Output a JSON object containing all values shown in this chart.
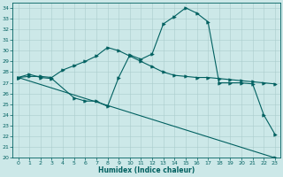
{
  "line1_x": [
    0,
    1,
    2,
    3,
    5,
    6,
    7,
    8,
    9,
    10,
    11,
    12,
    13,
    14,
    15,
    16,
    17,
    18,
    19,
    20,
    21,
    22,
    23
  ],
  "line1_y": [
    27.5,
    27.8,
    27.5,
    27.4,
    25.6,
    25.3,
    25.3,
    24.8,
    27.5,
    29.6,
    29.2,
    29.7,
    32.5,
    33.2,
    34.0,
    33.5,
    32.7,
    27.0,
    27.0,
    27.0,
    26.9,
    24.0,
    22.2
  ],
  "line2_x": [
    0,
    1,
    2,
    3,
    4,
    5,
    6,
    7,
    8,
    9,
    10,
    11,
    12,
    13,
    14,
    15,
    16,
    17,
    18,
    19,
    20,
    21,
    22,
    23
  ],
  "line2_y": [
    27.5,
    27.6,
    27.6,
    27.5,
    28.2,
    28.6,
    29.0,
    29.5,
    30.3,
    30.0,
    29.5,
    29.0,
    28.5,
    28.0,
    27.7,
    27.6,
    27.5,
    27.5,
    27.4,
    27.3,
    27.2,
    27.1,
    27.0,
    26.9
  ],
  "line3_x": [
    0,
    23
  ],
  "line3_y": [
    27.5,
    20.0
  ],
  "line_color": "#006060",
  "bg_color": "#cce8e8",
  "grid_color": "#aacccc",
  "xlabel": "Humidex (Indice chaleur)",
  "ylim": [
    20,
    34.5
  ],
  "xlim": [
    -0.5,
    23.5
  ],
  "yticks": [
    20,
    21,
    22,
    23,
    24,
    25,
    26,
    27,
    28,
    29,
    30,
    31,
    32,
    33,
    34
  ],
  "xticks": [
    0,
    1,
    2,
    3,
    4,
    5,
    6,
    7,
    8,
    9,
    10,
    11,
    12,
    13,
    14,
    15,
    16,
    17,
    18,
    19,
    20,
    21,
    22,
    23
  ]
}
